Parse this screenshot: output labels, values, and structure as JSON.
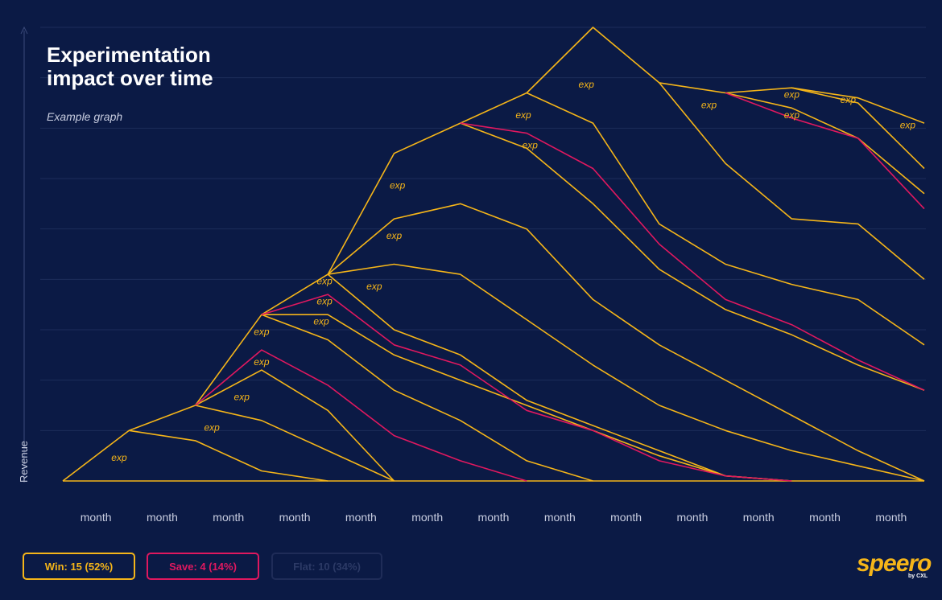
{
  "title": "Experimentation impact over time",
  "subtitle": "Example graph",
  "legend": {
    "win": "Win: 15 (52%)",
    "save": "Save: 4 (14%)",
    "flat": "Flat: 10 (34%)"
  },
  "brand": {
    "name": "speero",
    "sub": "by CXL"
  },
  "colors": {
    "background": "#0b1a45",
    "grid": "#1d2c5a",
    "win": "#f5b519",
    "save": "#e0185f",
    "axis_text": "#c8cde0"
  },
  "chart_data": {
    "type": "line",
    "title": "Experimentation impact over time",
    "subtitle": "Example graph",
    "xlabel": "",
    "ylabel": "Revenue",
    "x_tick_label": "month",
    "x": [
      0,
      1,
      2,
      3,
      4,
      5,
      6,
      7,
      8,
      9,
      10,
      11,
      12,
      13
    ],
    "ylim": [
      0,
      9
    ],
    "grid": true,
    "series_note_label": "exp",
    "series": [
      {
        "type": "win",
        "points": [
          [
            0,
            0
          ],
          [
            1,
            1
          ],
          [
            2,
            1.5
          ],
          [
            3,
            3.3
          ],
          [
            4,
            4.1
          ],
          [
            5,
            6.5
          ],
          [
            6,
            7.1
          ],
          [
            7,
            7.7
          ],
          [
            8,
            9
          ],
          [
            9,
            7.9
          ],
          [
            10,
            7.7
          ],
          [
            11,
            7.8
          ],
          [
            12,
            7.6
          ],
          [
            13,
            7.1
          ]
        ]
      },
      {
        "type": "win",
        "points": [
          [
            11,
            7.8
          ],
          [
            12,
            7.5
          ],
          [
            13,
            6.2
          ]
        ]
      },
      {
        "type": "win",
        "points": [
          [
            10,
            7.7
          ],
          [
            11,
            7.4
          ],
          [
            12,
            6.8
          ],
          [
            13,
            5.7
          ]
        ]
      },
      {
        "type": "win",
        "points": [
          [
            9,
            7.9
          ],
          [
            10,
            6.3
          ],
          [
            11,
            5.2
          ],
          [
            12,
            5.1
          ],
          [
            13,
            4
          ]
        ]
      },
      {
        "type": "win",
        "points": [
          [
            7,
            7.7
          ],
          [
            8,
            7.1
          ],
          [
            9,
            5.1
          ],
          [
            10,
            4.3
          ],
          [
            11,
            3.9
          ],
          [
            12,
            3.6
          ],
          [
            13,
            2.7
          ]
        ]
      },
      {
        "type": "win",
        "points": [
          [
            6,
            7.1
          ],
          [
            7,
            6.6
          ],
          [
            8,
            5.5
          ],
          [
            9,
            4.2
          ],
          [
            10,
            3.4
          ],
          [
            11,
            2.9
          ],
          [
            12,
            2.3
          ],
          [
            13,
            1.8
          ]
        ]
      },
      {
        "type": "win",
        "points": [
          [
            4,
            4.1
          ],
          [
            5,
            5.2
          ],
          [
            6,
            5.5
          ],
          [
            7,
            5
          ],
          [
            8,
            3.6
          ],
          [
            9,
            2.7
          ],
          [
            10,
            2
          ],
          [
            11,
            1.3
          ],
          [
            12,
            0.6
          ],
          [
            13,
            0
          ]
        ]
      },
      {
        "type": "win",
        "points": [
          [
            4,
            4.1
          ],
          [
            5,
            4.3
          ],
          [
            6,
            4.1
          ],
          [
            7,
            3.2
          ],
          [
            8,
            2.3
          ],
          [
            9,
            1.5
          ],
          [
            10,
            1
          ],
          [
            11,
            0.6
          ],
          [
            12,
            0.3
          ],
          [
            13,
            0
          ]
        ]
      },
      {
        "type": "win",
        "points": [
          [
            3,
            3.3
          ],
          [
            4,
            3.3
          ],
          [
            5,
            2.5
          ],
          [
            6,
            2
          ],
          [
            7,
            1.5
          ],
          [
            8,
            1
          ],
          [
            9,
            0.5
          ],
          [
            10,
            0.1
          ],
          [
            11,
            0
          ]
        ]
      },
      {
        "type": "win",
        "points": [
          [
            3,
            3.3
          ],
          [
            4,
            2.8
          ],
          [
            5,
            1.8
          ],
          [
            6,
            1.2
          ],
          [
            7,
            0.4
          ],
          [
            8,
            0
          ]
        ]
      },
      {
        "type": "win",
        "points": [
          [
            2,
            1.5
          ],
          [
            3,
            2.2
          ],
          [
            4,
            1.4
          ],
          [
            5,
            0
          ]
        ]
      },
      {
        "type": "win",
        "points": [
          [
            2,
            1.5
          ],
          [
            3,
            1.2
          ],
          [
            4,
            0.6
          ],
          [
            5,
            0
          ]
        ]
      },
      {
        "type": "win",
        "points": [
          [
            1,
            1
          ],
          [
            2,
            0.8
          ],
          [
            3,
            0.2
          ],
          [
            4,
            0
          ]
        ]
      },
      {
        "type": "win",
        "points": [
          [
            4,
            4.1
          ],
          [
            5,
            3
          ],
          [
            6,
            2.5
          ],
          [
            7,
            1.6
          ],
          [
            8,
            1.1
          ],
          [
            9,
            0.6
          ],
          [
            10,
            0.1
          ],
          [
            11,
            0
          ]
        ]
      },
      {
        "type": "win",
        "points": [
          [
            0,
            0
          ],
          [
            13,
            0
          ]
        ]
      },
      {
        "type": "save",
        "points": [
          [
            6,
            7.1
          ],
          [
            7,
            6.9
          ],
          [
            8,
            6.2
          ],
          [
            9,
            4.7
          ],
          [
            10,
            3.6
          ],
          [
            11,
            3.1
          ],
          [
            12,
            2.4
          ],
          [
            13,
            1.8
          ]
        ]
      },
      {
        "type": "save",
        "points": [
          [
            10,
            7.7
          ],
          [
            11,
            7.2
          ],
          [
            12,
            6.8
          ],
          [
            13,
            5.4
          ]
        ]
      },
      {
        "type": "save",
        "points": [
          [
            3,
            3.3
          ],
          [
            4,
            3.7
          ],
          [
            5,
            2.7
          ],
          [
            6,
            2.3
          ],
          [
            7,
            1.4
          ],
          [
            8,
            1
          ],
          [
            9,
            0.4
          ],
          [
            10,
            0.1
          ],
          [
            11,
            0
          ]
        ]
      },
      {
        "type": "save",
        "points": [
          [
            2,
            1.5
          ],
          [
            3,
            2.6
          ],
          [
            4,
            1.9
          ],
          [
            5,
            0.9
          ],
          [
            6,
            0.4
          ],
          [
            7,
            0
          ]
        ]
      }
    ],
    "annotations": [
      {
        "text": "exp",
        "x": 0.85,
        "y": 0.4
      },
      {
        "text": "exp",
        "x": 2.25,
        "y": 1
      },
      {
        "text": "exp",
        "x": 2.7,
        "y": 1.6
      },
      {
        "text": "exp",
        "x": 3.0,
        "y": 2.3
      },
      {
        "text": "exp",
        "x": 3.0,
        "y": 2.9
      },
      {
        "text": "exp",
        "x": 3.9,
        "y": 3.1
      },
      {
        "text": "exp",
        "x": 3.95,
        "y": 3.5
      },
      {
        "text": "exp",
        "x": 3.95,
        "y": 3.9
      },
      {
        "text": "exp",
        "x": 4.7,
        "y": 3.8
      },
      {
        "text": "exp",
        "x": 5.0,
        "y": 4.8
      },
      {
        "text": "exp",
        "x": 5.05,
        "y": 5.8
      },
      {
        "text": "exp",
        "x": 7.05,
        "y": 6.6
      },
      {
        "text": "exp",
        "x": 6.95,
        "y": 7.2
      },
      {
        "text": "exp",
        "x": 7.9,
        "y": 7.8
      },
      {
        "text": "exp",
        "x": 9.75,
        "y": 7.4
      },
      {
        "text": "exp",
        "x": 11.0,
        "y": 7.6
      },
      {
        "text": "exp",
        "x": 11.0,
        "y": 7.2
      },
      {
        "text": "exp",
        "x": 11.85,
        "y": 7.5
      },
      {
        "text": "exp",
        "x": 12.75,
        "y": 7.0
      }
    ]
  }
}
